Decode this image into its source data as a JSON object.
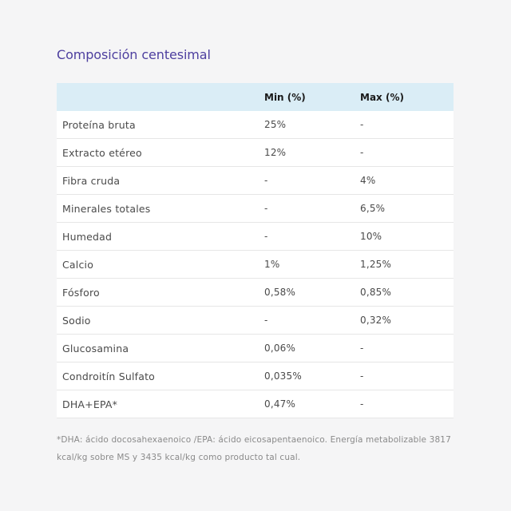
{
  "title": "Composición centesimal",
  "table": {
    "headers": {
      "name": "",
      "min": "Min (%)",
      "max": "Max (%)"
    },
    "rows": [
      {
        "name": "Proteína bruta",
        "min": "25%",
        "max": "-"
      },
      {
        "name": "Extracto etéreo",
        "min": "12%",
        "max": "-"
      },
      {
        "name": "Fibra cruda",
        "min": "-",
        "max": "4%"
      },
      {
        "name": "Minerales totales",
        "min": "-",
        "max": "6,5%"
      },
      {
        "name": "Humedad",
        "min": "-",
        "max": "10%"
      },
      {
        "name": "Calcio",
        "min": "1%",
        "max": "1,25%"
      },
      {
        "name": "Fósforo",
        "min": "0,58%",
        "max": "0,85%"
      },
      {
        "name": "Sodio",
        "min": "-",
        "max": "0,32%"
      },
      {
        "name": "Glucosamina",
        "min": "0,06%",
        "max": "-"
      },
      {
        "name": "Condroitín Sulfato",
        "min": "0,035%",
        "max": "-"
      },
      {
        "name": "DHA+EPA*",
        "min": "0,47%",
        "max": "-"
      }
    ]
  },
  "footnote": "*DHA: ácido docosahexaenoico /EPA: ácido eicosapentaenoico. Energía metabolizable 3817 kcal/kg sobre MS y 3435 kcal/kg como producto tal cual.",
  "colors": {
    "title": "#4d3f9f",
    "header_bg": "#daedf6",
    "page_bg": "#f5f5f6"
  }
}
